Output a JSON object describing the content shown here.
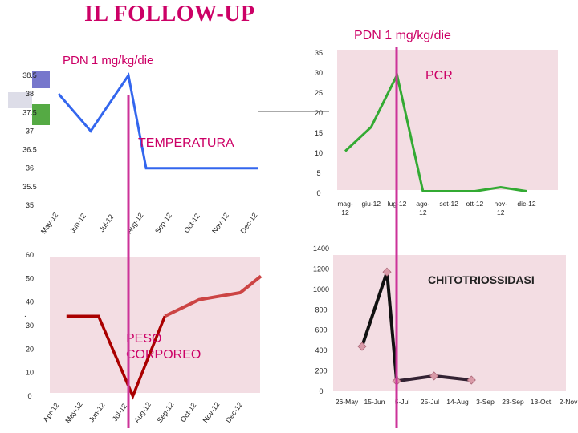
{
  "page_title": "IL FOLLOW-UP",
  "pdn_label": "PDN 1 mg/kg/die",
  "colors": {
    "title": "#cc0066",
    "marker_line": "#cc3399",
    "temperature": "#3366ee",
    "pcr": "#33aa33",
    "peso": "#bb2222",
    "chitotriossidasi": "#222222",
    "panel_bg": "#f3dde3"
  },
  "chart_data": [
    {
      "type": "line",
      "name": "temperatura",
      "annotation": "TEMPERATURA",
      "pdn_note": "PDN 1 mg/kg/die",
      "categories": [
        "May-12",
        "Jun-12",
        "Jul-12",
        "Aug-12",
        "Sep-12",
        "Oct-12",
        "Nov-12",
        "Dec-12"
      ],
      "values": [
        38.0,
        37.0,
        38.5,
        36.0,
        36.0,
        36.0,
        36.0,
        36.0
      ],
      "yticks": [
        "35",
        "35.5",
        "36",
        "36.5",
        "37",
        "37.5",
        "38",
        "38.5"
      ],
      "ylim": [
        35,
        38.5
      ]
    },
    {
      "type": "line",
      "name": "PCR",
      "annotation": "PCR",
      "categories": [
        "mag-12",
        "giu-12",
        "lug-12",
        "ago-12",
        "set-12",
        "ott-12",
        "nov-12",
        "dic-12"
      ],
      "category_labels": [
        "mag-\n12",
        "giu-12",
        "lug-12",
        "ago-\n12",
        "set-12",
        "ott-12",
        "nov-\n12",
        "dic-12"
      ],
      "values": [
        10.5,
        16.5,
        29.5,
        0.5,
        0.5,
        0.5,
        1.5,
        0.5
      ],
      "yticks": [
        "0",
        "5",
        "10",
        "15",
        "20",
        "25",
        "30",
        "35"
      ],
      "ylim": [
        0,
        35
      ]
    },
    {
      "type": "line",
      "name": "peso corporeo",
      "annotation": "PESO CORPOREO",
      "categories": [
        "Apr-12",
        "May-12",
        "Jun-12",
        "Jul-12",
        "Aug-12",
        "Sep-12",
        "Oct-12",
        "Nov-12",
        "Dec-12"
      ],
      "x": [
        0.4,
        1.1,
        1.85,
        2.55,
        3.3,
        4.2,
        4.65
      ],
      "values": [
        34,
        34,
        0,
        34,
        41,
        44,
        51
      ],
      "yticks": [
        "0",
        "10",
        "20",
        "30",
        "40",
        "50",
        "60"
      ],
      "ylim": [
        0,
        60
      ]
    },
    {
      "type": "line",
      "name": "chitotriossidasi",
      "annotation": "CHITOTRIOSSIDASI",
      "categories": [
        "26-May",
        "15-Jun",
        "5-Jul",
        "25-Jul",
        "14-Aug",
        "3-Sep",
        "23-Sep",
        "13-Oct",
        "2-Nov"
      ],
      "x": [
        0.55,
        1.45,
        1.8,
        3.15,
        4.5
      ],
      "values": [
        440,
        1170,
        100,
        150,
        110
      ],
      "yticks": [
        "0",
        "200",
        "400",
        "600",
        "800",
        "1000",
        "1200",
        "1400"
      ],
      "ylim": [
        0,
        1400
      ]
    }
  ]
}
